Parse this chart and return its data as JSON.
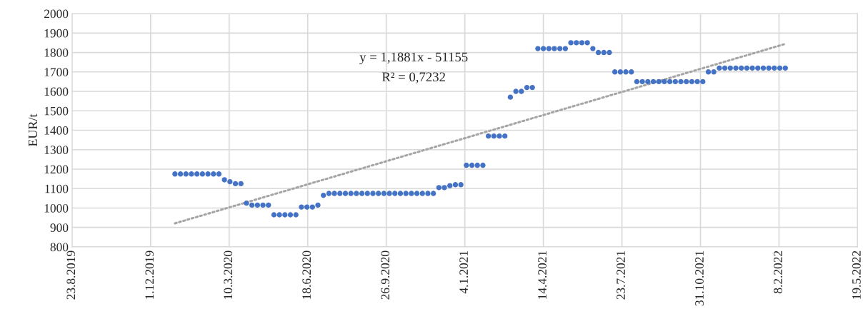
{
  "chart_data": {
    "type": "scatter",
    "ylabel": "EUR/t",
    "annotations": [
      "y = 1,1881x - 51155",
      "R² = 0,7232"
    ],
    "xlim": [
      "2019-08-23",
      "2022-05-19"
    ],
    "xticks": [
      {
        "value": "2019-08-23",
        "label": "23.8.2019"
      },
      {
        "value": "2019-12-01",
        "label": "1.12.2019"
      },
      {
        "value": "2020-03-10",
        "label": "10.3.2020"
      },
      {
        "value": "2020-06-18",
        "label": "18.6.2020"
      },
      {
        "value": "2020-09-26",
        "label": "26.9.2020"
      },
      {
        "value": "2021-01-04",
        "label": "4.1.2021"
      },
      {
        "value": "2021-04-14",
        "label": "14.4.2021"
      },
      {
        "value": "2021-07-23",
        "label": "23.7.2021"
      },
      {
        "value": "2021-10-31",
        "label": "31.10.2021"
      },
      {
        "value": "2022-02-08",
        "label": "8.2.2022"
      },
      {
        "value": "2022-05-19",
        "label": "19.5.2022"
      }
    ],
    "ylim": [
      800,
      2000
    ],
    "yticks": [
      800,
      900,
      1000,
      1100,
      1200,
      1300,
      1400,
      1500,
      1600,
      1700,
      1800,
      1900,
      2000
    ],
    "grid": true,
    "marker": "circle",
    "legend": false,
    "series": [
      {
        "color": "#4472c4",
        "x": [
          "2020-01-01",
          "2020-01-08",
          "2020-01-15",
          "2020-01-22",
          "2020-01-29",
          "2020-02-05",
          "2020-02-12",
          "2020-02-19",
          "2020-02-26",
          "2020-03-04",
          "2020-03-11",
          "2020-03-18",
          "2020-03-25",
          "2020-04-01",
          "2020-04-08",
          "2020-04-15",
          "2020-04-22",
          "2020-04-29",
          "2020-05-06",
          "2020-05-13",
          "2020-05-20",
          "2020-05-27",
          "2020-06-03",
          "2020-06-10",
          "2020-06-17",
          "2020-06-24",
          "2020-07-01",
          "2020-07-08",
          "2020-07-15",
          "2020-07-22",
          "2020-07-29",
          "2020-08-05",
          "2020-08-12",
          "2020-08-19",
          "2020-08-26",
          "2020-09-02",
          "2020-09-09",
          "2020-09-16",
          "2020-09-23",
          "2020-09-30",
          "2020-10-07",
          "2020-10-14",
          "2020-10-21",
          "2020-10-28",
          "2020-11-04",
          "2020-11-11",
          "2020-11-18",
          "2020-11-25",
          "2020-12-02",
          "2020-12-09",
          "2020-12-16",
          "2020-12-23",
          "2020-12-30",
          "2021-01-06",
          "2021-01-13",
          "2021-01-20",
          "2021-01-27",
          "2021-02-03",
          "2021-02-10",
          "2021-02-17",
          "2021-02-24",
          "2021-03-03",
          "2021-03-10",
          "2021-03-17",
          "2021-03-24",
          "2021-03-31",
          "2021-04-07",
          "2021-04-14",
          "2021-04-21",
          "2021-04-28",
          "2021-05-05",
          "2021-05-12",
          "2021-05-19",
          "2021-05-26",
          "2021-06-02",
          "2021-06-09",
          "2021-06-16",
          "2021-06-23",
          "2021-06-30",
          "2021-07-07",
          "2021-07-14",
          "2021-07-21",
          "2021-07-28",
          "2021-08-04",
          "2021-08-11",
          "2021-08-18",
          "2021-08-25",
          "2021-09-01",
          "2021-09-08",
          "2021-09-15",
          "2021-09-22",
          "2021-09-29",
          "2021-10-06",
          "2021-10-13",
          "2021-10-20",
          "2021-10-27",
          "2021-11-03",
          "2021-11-10",
          "2021-11-17",
          "2021-11-24",
          "2021-12-01",
          "2021-12-08",
          "2021-12-15",
          "2021-12-22",
          "2021-12-29",
          "2022-01-05",
          "2022-01-12",
          "2022-01-19",
          "2022-01-26",
          "2022-02-02",
          "2022-02-09",
          "2022-02-16"
        ],
        "values": [
          1175,
          1175,
          1175,
          1175,
          1175,
          1175,
          1175,
          1175,
          1175,
          1145,
          1135,
          1125,
          1125,
          1025,
          1015,
          1015,
          1015,
          1015,
          965,
          965,
          965,
          965,
          965,
          1005,
          1005,
          1005,
          1015,
          1065,
          1075,
          1075,
          1075,
          1075,
          1075,
          1075,
          1075,
          1075,
          1075,
          1075,
          1075,
          1075,
          1075,
          1075,
          1075,
          1075,
          1075,
          1075,
          1075,
          1075,
          1105,
          1105,
          1115,
          1120,
          1120,
          1220,
          1220,
          1220,
          1220,
          1370,
          1370,
          1370,
          1370,
          1570,
          1600,
          1600,
          1620,
          1620,
          1820,
          1820,
          1820,
          1820,
          1820,
          1820,
          1850,
          1850,
          1850,
          1850,
          1820,
          1800,
          1800,
          1800,
          1700,
          1700,
          1700,
          1700,
          1650,
          1650,
          1650,
          1650,
          1650,
          1650,
          1650,
          1650,
          1650,
          1650,
          1650,
          1650,
          1650,
          1700,
          1700,
          1720,
          1720,
          1720,
          1720,
          1720,
          1720,
          1720,
          1720,
          1720,
          1720,
          1720,
          1720,
          1720
        ]
      },
      {
        "type": "line",
        "color": "#a5a5a5",
        "line_style": "dotted",
        "marker": "none",
        "x": [
          "2020-01-01",
          "2022-02-16"
        ],
        "values": [
          921,
          1844
        ]
      }
    ]
  }
}
